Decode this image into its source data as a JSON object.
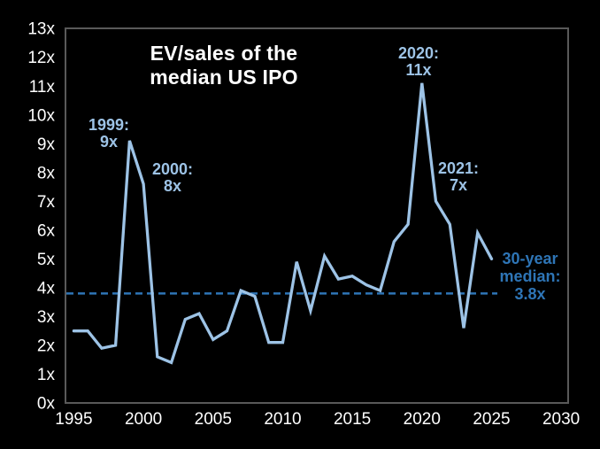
{
  "chart_data": {
    "type": "line",
    "title": "EV/sales of the median US IPO",
    "title_lines": [
      "EV/sales of the",
      "median US IPO"
    ],
    "series_name": "EV/sales of the median US IPO",
    "x": [
      1995,
      1996,
      1997,
      1998,
      1999,
      2000,
      2001,
      2002,
      2003,
      2004,
      2005,
      2006,
      2007,
      2008,
      2009,
      2010,
      2011,
      2012,
      2013,
      2014,
      2015,
      2016,
      2017,
      2018,
      2019,
      2020,
      2021,
      2022,
      2023,
      2024,
      2025
    ],
    "values": [
      2.5,
      2.5,
      1.9,
      2.0,
      9.1,
      7.6,
      1.6,
      1.4,
      2.9,
      3.1,
      2.2,
      2.5,
      3.9,
      3.7,
      2.1,
      2.1,
      4.9,
      3.2,
      5.1,
      4.3,
      4.4,
      4.1,
      3.9,
      5.6,
      6.2,
      11.1,
      7.0,
      6.2,
      2.6,
      5.9,
      5.0
    ],
    "xlabel": "",
    "ylabel": "",
    "xlim": [
      1994.4,
      2030.5
    ],
    "ylim": [
      0,
      13
    ],
    "grid": false,
    "legend": "none",
    "xticks": [
      1995,
      2000,
      2005,
      2010,
      2015,
      2020,
      2025,
      2030
    ],
    "xtick_labels": [
      "1995",
      "2000",
      "2005",
      "2010",
      "2015",
      "2020",
      "2025",
      "2030"
    ],
    "yticks": [
      0,
      1,
      2,
      3,
      4,
      5,
      6,
      7,
      8,
      9,
      10,
      11,
      12,
      13
    ],
    "ytick_labels": [
      "0x",
      "1x",
      "2x",
      "3x",
      "4x",
      "5x",
      "6x",
      "7x",
      "8x",
      "9x",
      "10x",
      "11x",
      "12x",
      "13x"
    ],
    "median_line": {
      "value": 3.8,
      "style": "dashed",
      "label": "30-year median: 3.8x"
    },
    "annotations": [
      {
        "name": "peak-1999",
        "year": 1999,
        "value": 9,
        "lines": [
          "1999:",
          "9x"
        ]
      },
      {
        "name": "point-2000",
        "year": 2000,
        "value": 8,
        "lines": [
          "2000:",
          "8x"
        ]
      },
      {
        "name": "peak-2020",
        "year": 2020,
        "value": 11,
        "lines": [
          "2020:",
          "11x"
        ]
      },
      {
        "name": "point-2021",
        "year": 2021,
        "value": 7,
        "lines": [
          "2021:",
          "7x"
        ]
      },
      {
        "name": "median-label",
        "value": 3.8,
        "lines": [
          "30-year",
          "median:",
          "3.8x"
        ]
      }
    ],
    "colors": {
      "background": "#000000",
      "line": "#9DC3E6",
      "median": "#2E75B6",
      "text": "#FFFFFF",
      "border": "#595959"
    }
  }
}
